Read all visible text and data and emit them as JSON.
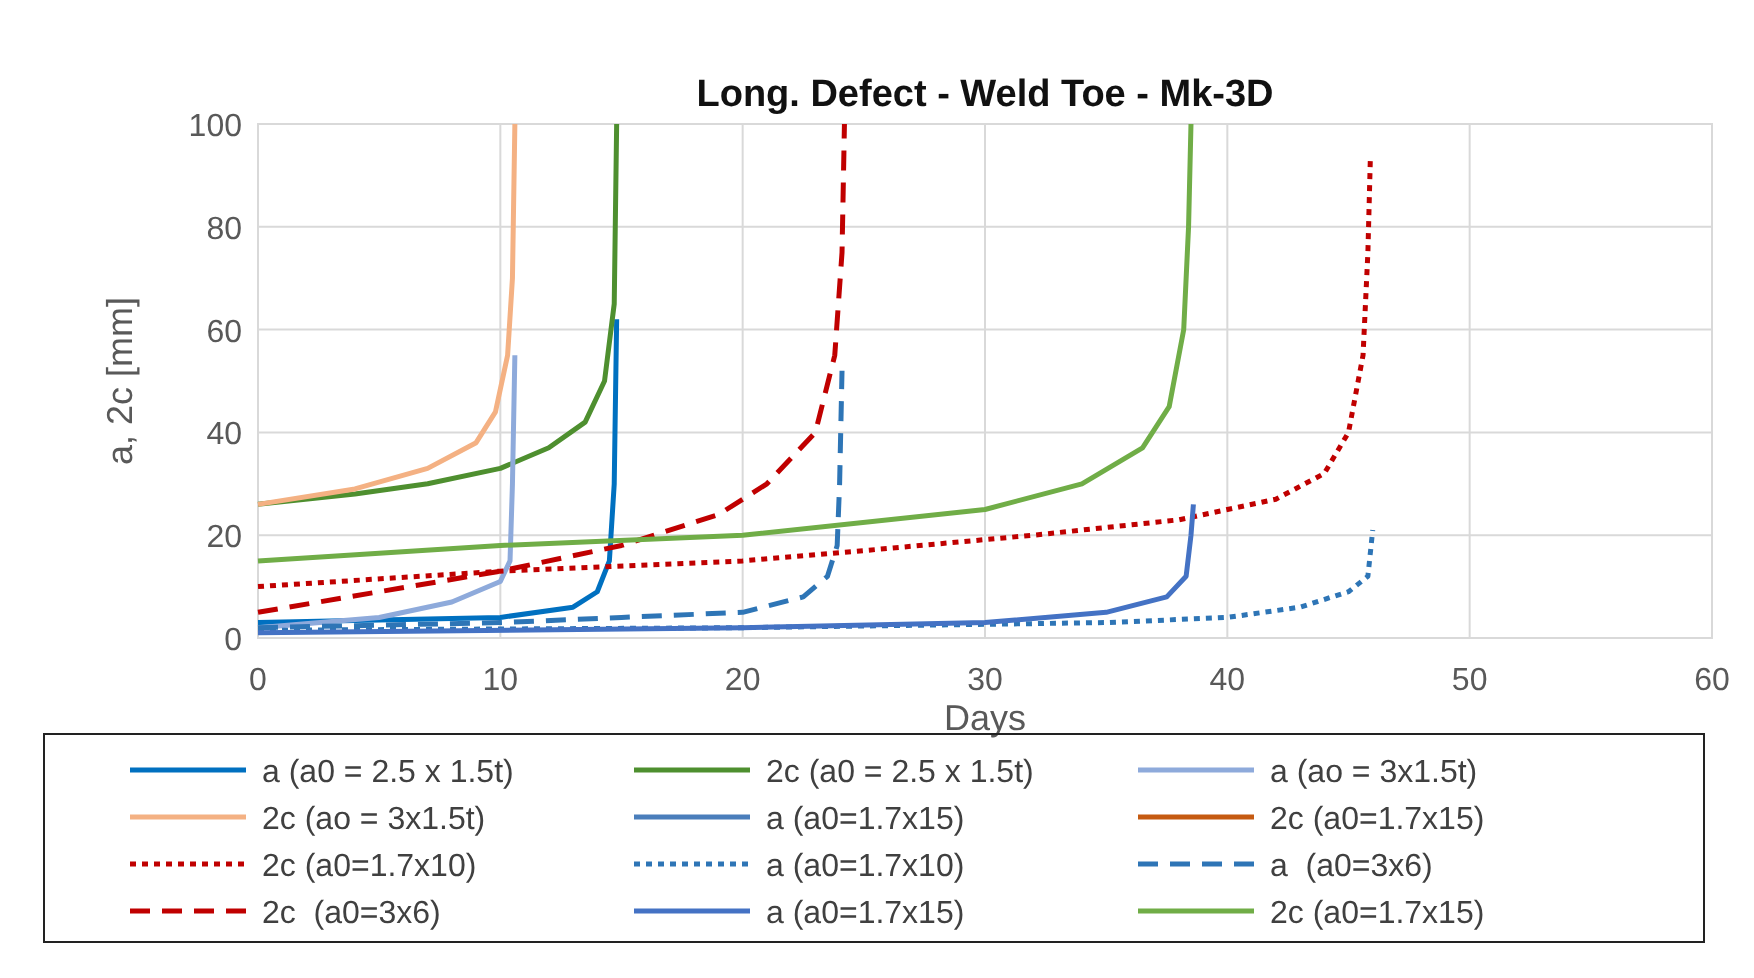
{
  "chart_data": {
    "type": "line",
    "title": "Long. Defect - Weld Toe - Mk-3D",
    "xlabel": "Days",
    "ylabel": "a, 2c [mm]",
    "xlim": [
      0,
      60
    ],
    "xticks": [
      0,
      10,
      20,
      30,
      40,
      50,
      60
    ],
    "ylim": [
      0,
      100
    ],
    "yticks": [
      0,
      20,
      40,
      60,
      80,
      100
    ],
    "grid": true,
    "legend": "bottom",
    "series": [
      {
        "name": "a (a0 = 2.5 x 1.5t)",
        "color": "#0070c0",
        "line_style": "solid",
        "x": [
          0,
          5,
          10,
          13,
          14,
          14.5,
          14.7,
          14.8
        ],
        "values": [
          3,
          3.5,
          4,
          6,
          9,
          15,
          30,
          62
        ]
      },
      {
        "name": "2c (a0 = 2.5 x 1.5t)",
        "color": "#4e8f2f",
        "line_style": "solid",
        "x": [
          0,
          4,
          7,
          10,
          12,
          13.5,
          14.3,
          14.7,
          14.8
        ],
        "values": [
          26,
          28,
          30,
          33,
          37,
          42,
          50,
          65,
          100
        ]
      },
      {
        "name": "a (ao = 3x1.5t)",
        "color": "#8eaadb",
        "line_style": "solid",
        "x": [
          0,
          5,
          8,
          10,
          10.4,
          10.5,
          10.6
        ],
        "values": [
          2,
          4,
          7,
          11,
          15,
          30,
          55
        ]
      },
      {
        "name": "2c (ao = 3x1.5t)",
        "color": "#f4b183",
        "line_style": "solid",
        "x": [
          0,
          4,
          7,
          9,
          9.8,
          10.3,
          10.5,
          10.6
        ],
        "values": [
          26,
          29,
          33,
          38,
          44,
          55,
          70,
          100
        ]
      },
      {
        "name": "a (a0=1.7x15)",
        "color": "#4a7ebb",
        "line_style": "solid"
      },
      {
        "name": "2c (a0=1.7x15)",
        "color": "#c55a11",
        "line_style": "solid"
      },
      {
        "name": "2c (a0=1.7x10)",
        "color": "#c00000",
        "line_style": "dotted",
        "x": [
          0,
          10,
          20,
          25,
          32,
          38,
          42,
          44,
          45,
          45.6,
          45.8,
          45.9
        ],
        "values": [
          10,
          13,
          15,
          17,
          20,
          23,
          27,
          32,
          40,
          55,
          75,
          93
        ]
      },
      {
        "name": "a (a0=1.7x10)",
        "color": "#2e75b6",
        "line_style": "dotted",
        "x": [
          0,
          20,
          35,
          40,
          43,
          45,
          45.8,
          46
        ],
        "values": [
          1.5,
          2,
          3,
          4,
          6,
          9,
          12,
          21
        ]
      },
      {
        "name": "a  (a0=3x6)",
        "color": "#2e75b6",
        "line_style": "dashed",
        "x": [
          0,
          10,
          15,
          20,
          22.5,
          23.5,
          23.9,
          24,
          24.1
        ],
        "values": [
          2,
          3,
          4,
          5,
          8,
          12,
          18,
          30,
          52
        ]
      },
      {
        "name": "2c  (a0=3x6)",
        "color": "#c00000",
        "line_style": "dashed",
        "x": [
          0,
          5,
          10,
          15,
          19,
          21,
          23,
          23.8,
          24.1,
          24.2
        ],
        "values": [
          5,
          9,
          13,
          18,
          24,
          30,
          40,
          55,
          75,
          100
        ]
      },
      {
        "name": "a (a0=1.7x15)",
        "color": "#4472c4",
        "line_style": "solid",
        "x": [
          0,
          20,
          30,
          35,
          37.5,
          38.3,
          38.5,
          38.6
        ],
        "values": [
          1,
          2,
          3,
          5,
          8,
          12,
          20,
          26
        ]
      },
      {
        "name": "2c (a0=1.7x15)",
        "color": "#70ad47",
        "line_style": "solid",
        "x": [
          0,
          10,
          20,
          30,
          34,
          36.5,
          37.6,
          38.2,
          38.4,
          38.5
        ],
        "values": [
          15,
          18,
          20,
          25,
          30,
          37,
          45,
          60,
          80,
          100
        ]
      }
    ]
  }
}
